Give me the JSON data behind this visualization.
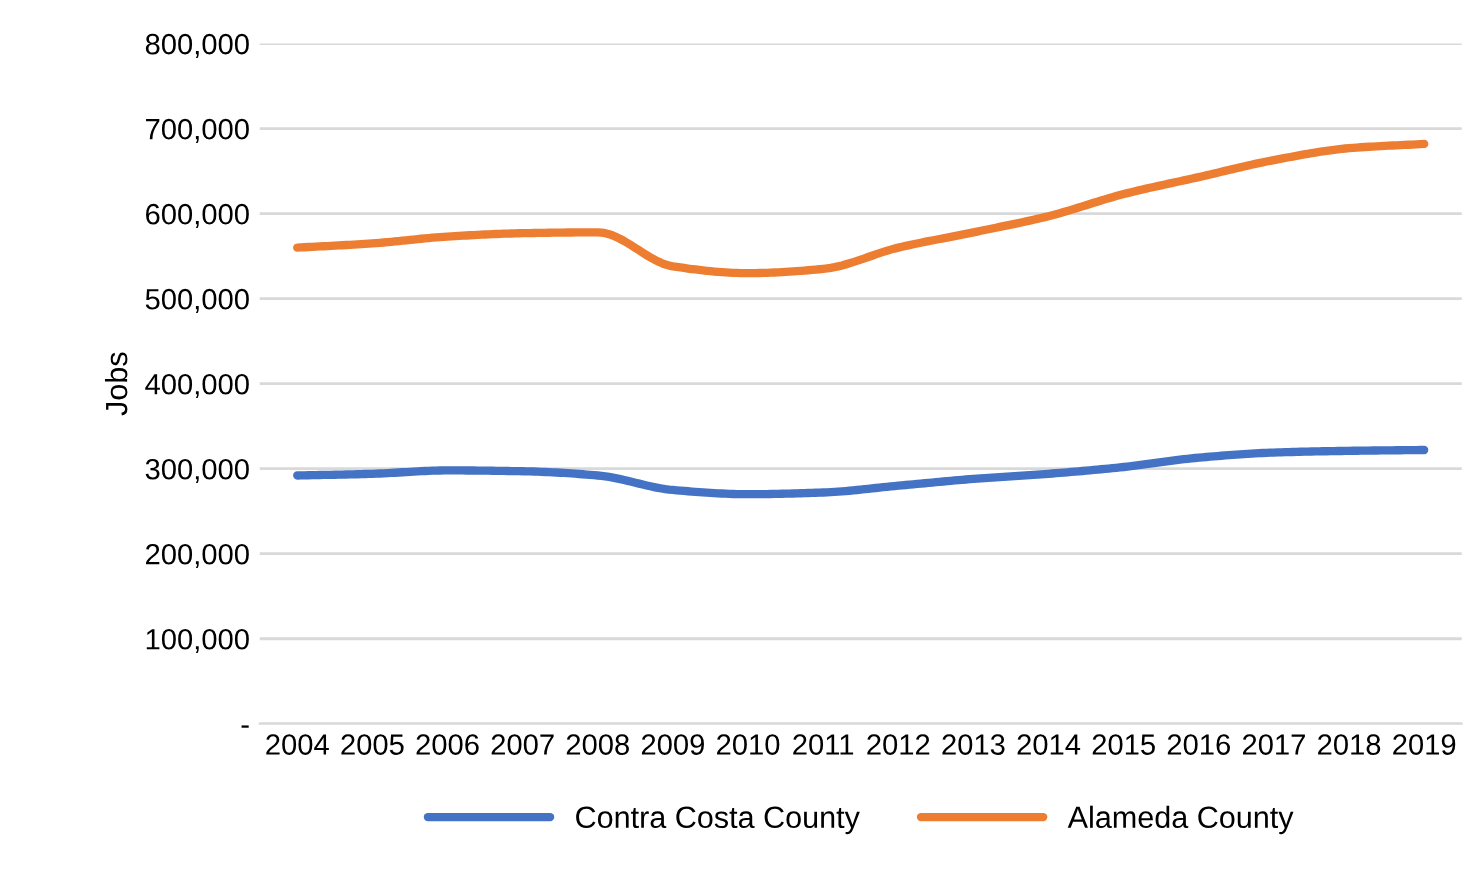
{
  "chart_data": {
    "type": "line",
    "ylabel": "Jobs",
    "categories": [
      "2004",
      "2005",
      "2006",
      "2007",
      "2008",
      "2009",
      "2010",
      "2011",
      "2012",
      "2013",
      "2014",
      "2015",
      "2016",
      "2017",
      "2018",
      "2019"
    ],
    "series": [
      {
        "name": "Contra Costa County",
        "color": "#4472c4",
        "values": [
          292000,
          294000,
          298000,
          297000,
          292000,
          275000,
          270000,
          272000,
          280000,
          288000,
          294000,
          302000,
          313000,
          319000,
          321000,
          322000
        ]
      },
      {
        "name": "Alameda County",
        "color": "#ed7d31",
        "values": [
          560000,
          565000,
          573000,
          577000,
          578000,
          538000,
          530000,
          535000,
          560000,
          578000,
          597000,
          623000,
          643000,
          663000,
          677000,
          682000
        ]
      }
    ],
    "ylim": [
      0,
      800000
    ],
    "yticks": [
      {
        "value": 0,
        "label": "-"
      },
      {
        "value": 100000,
        "label": "100,000"
      },
      {
        "value": 200000,
        "label": "200,000"
      },
      {
        "value": 300000,
        "label": "300,000"
      },
      {
        "value": 400000,
        "label": "400,000"
      },
      {
        "value": 500000,
        "label": "500,000"
      },
      {
        "value": 600000,
        "label": "600,000"
      },
      {
        "value": 700000,
        "label": "700,000"
      },
      {
        "value": 800000,
        "label": "800,000"
      }
    ],
    "grid": "y",
    "legend": "bottom",
    "marker": "none",
    "line_style": "solid"
  }
}
